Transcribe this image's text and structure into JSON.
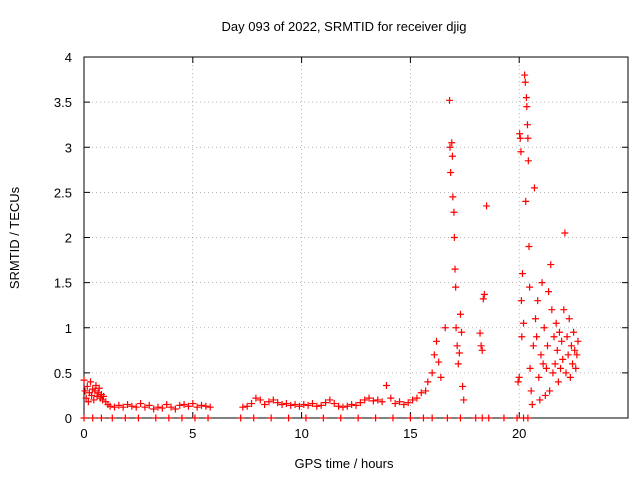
{
  "chart_data": {
    "type": "scatter",
    "title": "Day 093 of 2022, SRMTID for receiver djig",
    "xlabel": "GPS time / hours",
    "ylabel": "SRMTID / TECUs",
    "xlim": [
      0,
      25
    ],
    "ylim": [
      0,
      4
    ],
    "xticks": [
      0,
      5,
      10,
      15,
      20
    ],
    "yticks": [
      0,
      0.5,
      1,
      1.5,
      2,
      2.5,
      3,
      3.5,
      4
    ],
    "xtick_labels": [
      "0",
      "5",
      "10",
      "15",
      "20"
    ],
    "ytick_labels": [
      "0",
      "0.5",
      "1",
      "1.5",
      "2",
      "2.5",
      "3",
      "3.5",
      "4"
    ],
    "grid": true,
    "marker": "+",
    "color": "#ff0000",
    "series": [
      {
        "name": "SRMTID",
        "points": [
          [
            0.0,
            0.42
          ],
          [
            0.05,
            0.3
          ],
          [
            0.1,
            0.22
          ],
          [
            0.15,
            0.35
          ],
          [
            0.2,
            0.18
          ],
          [
            0.25,
            0.28
          ],
          [
            0.3,
            0.4
          ],
          [
            0.35,
            0.25
          ],
          [
            0.4,
            0.32
          ],
          [
            0.45,
            0.2
          ],
          [
            0.5,
            0.3
          ],
          [
            0.55,
            0.36
          ],
          [
            0.6,
            0.24
          ],
          [
            0.65,
            0.28
          ],
          [
            0.7,
            0.33
          ],
          [
            0.75,
            0.22
          ],
          [
            0.8,
            0.26
          ],
          [
            0.85,
            0.2
          ],
          [
            0.9,
            0.24
          ],
          [
            1.0,
            0.18
          ],
          [
            1.1,
            0.15
          ],
          [
            1.2,
            0.13
          ],
          [
            1.4,
            0.12
          ],
          [
            1.6,
            0.14
          ],
          [
            1.8,
            0.12
          ],
          [
            2.0,
            0.15
          ],
          [
            2.2,
            0.13
          ],
          [
            2.4,
            0.12
          ],
          [
            2.6,
            0.16
          ],
          [
            2.8,
            0.12
          ],
          [
            3.0,
            0.14
          ],
          [
            3.2,
            0.1
          ],
          [
            3.4,
            0.12
          ],
          [
            3.6,
            0.11
          ],
          [
            3.8,
            0.15
          ],
          [
            4.0,
            0.12
          ],
          [
            4.2,
            0.1
          ],
          [
            4.4,
            0.14
          ],
          [
            4.6,
            0.15
          ],
          [
            4.8,
            0.13
          ],
          [
            5.0,
            0.16
          ],
          [
            5.2,
            0.12
          ],
          [
            5.4,
            0.14
          ],
          [
            5.6,
            0.13
          ],
          [
            5.8,
            0.12
          ],
          [
            0.0,
            0.0
          ],
          [
            0.4,
            0.0
          ],
          [
            0.8,
            0.0
          ],
          [
            1.3,
            0.0
          ],
          [
            1.9,
            0.0
          ],
          [
            2.5,
            0.0
          ],
          [
            3.3,
            0.0
          ],
          [
            3.9,
            0.0
          ],
          [
            4.5,
            0.0
          ],
          [
            5.1,
            0.0
          ],
          [
            5.7,
            0.0
          ],
          [
            7.3,
            0.12
          ],
          [
            7.5,
            0.13
          ],
          [
            7.7,
            0.16
          ],
          [
            7.9,
            0.22
          ],
          [
            8.1,
            0.2
          ],
          [
            8.3,
            0.15
          ],
          [
            8.5,
            0.18
          ],
          [
            8.7,
            0.2
          ],
          [
            8.9,
            0.17
          ],
          [
            9.1,
            0.15
          ],
          [
            9.3,
            0.16
          ],
          [
            9.5,
            0.14
          ],
          [
            9.7,
            0.15
          ],
          [
            9.9,
            0.13
          ],
          [
            10.1,
            0.15
          ],
          [
            10.3,
            0.14
          ],
          [
            10.5,
            0.16
          ],
          [
            10.7,
            0.13
          ],
          [
            10.9,
            0.14
          ],
          [
            11.1,
            0.17
          ],
          [
            11.3,
            0.2
          ],
          [
            11.5,
            0.16
          ],
          [
            11.7,
            0.13
          ],
          [
            11.9,
            0.12
          ],
          [
            12.1,
            0.13
          ],
          [
            12.3,
            0.15
          ],
          [
            12.5,
            0.14
          ],
          [
            12.7,
            0.17
          ],
          [
            12.9,
            0.2
          ],
          [
            13.1,
            0.22
          ],
          [
            13.3,
            0.19
          ],
          [
            13.5,
            0.2
          ],
          [
            13.7,
            0.18
          ],
          [
            13.9,
            0.36
          ],
          [
            14.1,
            0.22
          ],
          [
            14.3,
            0.16
          ],
          [
            14.5,
            0.18
          ],
          [
            14.7,
            0.15
          ],
          [
            14.9,
            0.17
          ],
          [
            15.1,
            0.2
          ],
          [
            15.3,
            0.22
          ],
          [
            15.5,
            0.28
          ],
          [
            15.7,
            0.3
          ],
          [
            15.8,
            0.4
          ],
          [
            7.2,
            0.0
          ],
          [
            7.8,
            0.0
          ],
          [
            8.6,
            0.0
          ],
          [
            9.4,
            0.0
          ],
          [
            10.2,
            0.0
          ],
          [
            11.0,
            0.0
          ],
          [
            11.8,
            0.0
          ],
          [
            12.6,
            0.0
          ],
          [
            13.4,
            0.0
          ],
          [
            14.2,
            0.0
          ],
          [
            15.0,
            0.0
          ],
          [
            15.6,
            0.0
          ],
          [
            16.0,
            0.5
          ],
          [
            16.1,
            0.7
          ],
          [
            16.2,
            0.85
          ],
          [
            16.3,
            0.62
          ],
          [
            16.4,
            0.45
          ],
          [
            16.6,
            1.0
          ],
          [
            16.8,
            3.52
          ],
          [
            16.82,
            3.0
          ],
          [
            16.85,
            2.72
          ],
          [
            16.9,
            3.05
          ],
          [
            16.93,
            2.9
          ],
          [
            16.95,
            2.45
          ],
          [
            17.0,
            2.28
          ],
          [
            17.02,
            2.0
          ],
          [
            17.05,
            1.65
          ],
          [
            17.08,
            1.45
          ],
          [
            17.1,
            1.0
          ],
          [
            17.15,
            0.8
          ],
          [
            17.2,
            0.6
          ],
          [
            17.25,
            0.72
          ],
          [
            17.3,
            1.15
          ],
          [
            17.35,
            0.95
          ],
          [
            17.4,
            0.35
          ],
          [
            17.45,
            0.2
          ],
          [
            18.2,
            0.94
          ],
          [
            18.25,
            0.8
          ],
          [
            18.3,
            0.75
          ],
          [
            18.35,
            1.32
          ],
          [
            18.4,
            1.37
          ],
          [
            18.5,
            2.35
          ],
          [
            16.0,
            0.0
          ],
          [
            16.7,
            0.0
          ],
          [
            17.3,
            0.0
          ],
          [
            18.0,
            0.0
          ],
          [
            18.3,
            0.0
          ],
          [
            18.6,
            0.0
          ],
          [
            19.3,
            0.0
          ],
          [
            19.9,
            0.0
          ],
          [
            20.2,
            0.0
          ],
          [
            20.4,
            0.0
          ],
          [
            19.95,
            0.4
          ],
          [
            20.0,
            0.45
          ],
          [
            20.02,
            3.15
          ],
          [
            20.05,
            3.1
          ],
          [
            20.08,
            2.95
          ],
          [
            20.1,
            1.3
          ],
          [
            20.12,
            0.9
          ],
          [
            20.15,
            1.6
          ],
          [
            20.2,
            1.05
          ],
          [
            20.25,
            3.8
          ],
          [
            20.28,
            3.72
          ],
          [
            20.3,
            2.4
          ],
          [
            20.33,
            3.55
          ],
          [
            20.35,
            3.45
          ],
          [
            20.38,
            3.25
          ],
          [
            20.4,
            3.1
          ],
          [
            20.42,
            2.85
          ],
          [
            20.45,
            1.9
          ],
          [
            20.48,
            1.45
          ],
          [
            20.5,
            0.55
          ],
          [
            20.55,
            0.3
          ],
          [
            20.6,
            0.15
          ],
          [
            20.65,
            0.8
          ],
          [
            20.7,
            2.55
          ],
          [
            20.75,
            1.1
          ],
          [
            20.8,
            0.9
          ],
          [
            20.85,
            1.3
          ],
          [
            20.9,
            0.45
          ],
          [
            20.95,
            0.2
          ],
          [
            21.0,
            0.7
          ],
          [
            21.05,
            1.5
          ],
          [
            21.1,
            0.6
          ],
          [
            21.15,
            1.0
          ],
          [
            21.2,
            0.25
          ],
          [
            21.25,
            0.55
          ],
          [
            21.3,
            0.8
          ],
          [
            21.35,
            1.4
          ],
          [
            21.4,
            0.3
          ],
          [
            21.45,
            1.7
          ],
          [
            21.5,
            1.2
          ],
          [
            21.55,
            0.5
          ],
          [
            21.6,
            0.9
          ],
          [
            21.65,
            0.6
          ],
          [
            21.7,
            1.05
          ],
          [
            21.75,
            0.75
          ],
          [
            21.8,
            0.4
          ],
          [
            21.85,
            0.95
          ],
          [
            21.9,
            0.55
          ],
          [
            21.95,
            0.85
          ],
          [
            22.0,
            0.65
          ],
          [
            22.05,
            1.2
          ],
          [
            22.1,
            2.05
          ],
          [
            22.15,
            0.5
          ],
          [
            22.2,
            0.9
          ],
          [
            22.25,
            0.7
          ],
          [
            22.3,
            1.1
          ],
          [
            22.35,
            0.45
          ],
          [
            22.4,
            0.8
          ],
          [
            22.45,
            0.6
          ],
          [
            22.5,
            0.95
          ],
          [
            22.55,
            0.75
          ],
          [
            22.6,
            0.55
          ],
          [
            22.65,
            0.7
          ],
          [
            22.7,
            0.85
          ]
        ]
      }
    ]
  }
}
